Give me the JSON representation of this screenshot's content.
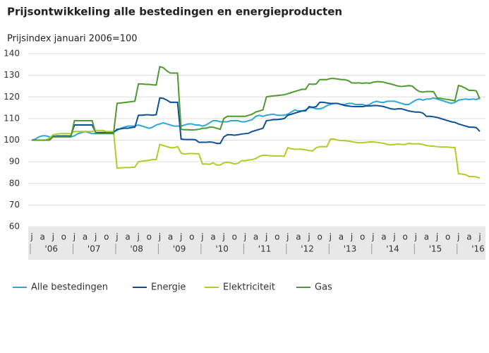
{
  "chart_data": {
    "type": "line",
    "title": "Prijsontwikkeling alle bestedingen en energieproducten",
    "subtitle": "Prijsindex januari 2006=100",
    "categories": [
      "j",
      null,
      null,
      "a",
      null,
      null,
      "j",
      null,
      null,
      "o",
      null,
      null,
      "j",
      null,
      null,
      "a",
      null,
      null,
      "j",
      null,
      null,
      "o",
      null,
      null,
      "j",
      null,
      null,
      "a",
      null,
      null,
      "j",
      null,
      null,
      "o",
      null,
      null,
      "j",
      null,
      null,
      "a",
      null,
      null,
      "j",
      null,
      null,
      "o",
      null,
      null,
      "j",
      null,
      null,
      "a",
      null,
      null,
      "j",
      null,
      null,
      "o",
      null,
      null,
      "j",
      null,
      null,
      "a",
      null,
      null,
      "j",
      null,
      null,
      "o",
      null,
      null,
      "j",
      null,
      null,
      "a",
      null,
      null,
      "j",
      null,
      null,
      "o",
      null,
      null,
      "j",
      null,
      null,
      "a",
      null,
      null,
      "j",
      null,
      null,
      "o",
      null,
      null,
      "j",
      null,
      null,
      "a",
      null,
      null,
      "j",
      null,
      null,
      "o",
      null,
      null,
      "j",
      null,
      null,
      "a",
      null,
      null,
      "j",
      null,
      null,
      "o",
      null,
      null,
      "j",
      null,
      null,
      "a",
      null,
      null,
      "j"
    ],
    "year_labels": [
      "'06",
      "'07",
      "'08",
      "'09",
      "'10",
      "'11",
      "'12",
      "'13",
      "'14",
      "'15",
      "'16"
    ],
    "ylim": [
      60,
      140
    ],
    "yticks": [
      60,
      70,
      80,
      90,
      100,
      110,
      120,
      130,
      140
    ],
    "grid": true,
    "series": [
      {
        "name": "Alle bestedingen",
        "color": "#2da7d6",
        "values": [
          100,
          100.5,
          101.5,
          102,
          102,
          101.5,
          101.5,
          102,
          102,
          102,
          102,
          101.5,
          102,
          103,
          103.5,
          104,
          103.5,
          103,
          103,
          103.5,
          103.5,
          103.5,
          103.5,
          104,
          104.5,
          105.5,
          106,
          106.5,
          106.5,
          106.5,
          107,
          106.5,
          106,
          105.5,
          106,
          107,
          107.5,
          108,
          107.5,
          107,
          106.5,
          106.5,
          106.5,
          107,
          107.5,
          107.5,
          107,
          107,
          106.5,
          107,
          108,
          109,
          109,
          108.5,
          108.5,
          108.5,
          109,
          109,
          109,
          108.5,
          108.5,
          109,
          109.5,
          111,
          111.5,
          111,
          111.5,
          111.8,
          112,
          111.5,
          111.5,
          111.5,
          112,
          113,
          114,
          113.5,
          113.5,
          114,
          115,
          115,
          114.5,
          114.5,
          115,
          116,
          116.5,
          117,
          117,
          116.5,
          116.5,
          117,
          117,
          116.5,
          116.5,
          116.5,
          116,
          116.5,
          117.5,
          118,
          117.5,
          117.5,
          118,
          118,
          118,
          117.5,
          117,
          116.5,
          116.5,
          117.5,
          118.5,
          119,
          118.5,
          119,
          119,
          119.5,
          119,
          118.5,
          118,
          117.5,
          117,
          117.5,
          118.5,
          118.8,
          119,
          118.8,
          119,
          118.8,
          119.5
        ]
      },
      {
        "name": "Energie",
        "color": "#0f4f96",
        "values": [
          100,
          100,
          100,
          100,
          100,
          100.5,
          101.8,
          101.8,
          101.8,
          101.8,
          101.8,
          102,
          107,
          107,
          107,
          107,
          107,
          107,
          103.5,
          103.5,
          103.5,
          103.5,
          103.5,
          103.5,
          105,
          105.2,
          105.5,
          105.5,
          105.8,
          106,
          111.5,
          111.5,
          111.7,
          111.7,
          111.5,
          111.8,
          119.5,
          119.3,
          118.5,
          117.5,
          117.5,
          117.5,
          100.5,
          100.3,
          100.3,
          100.3,
          100.2,
          99,
          99,
          99,
          99.2,
          99,
          98.5,
          98.5,
          101.5,
          102.5,
          102.5,
          102.3,
          102.5,
          102.8,
          103,
          103.2,
          104,
          104.5,
          105,
          105.5,
          109,
          109.2,
          109.5,
          109.5,
          109.7,
          110,
          111.5,
          112,
          112.5,
          113,
          113.5,
          113.5,
          115.5,
          115.2,
          115.5,
          117.5,
          117.5,
          117.2,
          117,
          117,
          117,
          116.5,
          116,
          115.8,
          115.6,
          115.5,
          115.5,
          115.5,
          115.8,
          115.8,
          116,
          116,
          115.8,
          115.5,
          115,
          114.5,
          114.3,
          114.5,
          114.5,
          114,
          113.5,
          113.2,
          113,
          113,
          112.5,
          111,
          111,
          110.8,
          110.5,
          110,
          109.5,
          109,
          108.5,
          108.2,
          107.5,
          107,
          106.5,
          106,
          106,
          105.8,
          104
        ]
      },
      {
        "name": "Elektriciteit",
        "color": "#b3cc24",
        "values": [
          100,
          100,
          100,
          100,
          100,
          101,
          102.5,
          102.8,
          103,
          103,
          103,
          103,
          104,
          104,
          104,
          104,
          104,
          104,
          104.5,
          104.5,
          104.5,
          104,
          104,
          104,
          87,
          87.2,
          87.3,
          87.3,
          87.4,
          87.5,
          90,
          90.3,
          90.5,
          90.7,
          91,
          91,
          98,
          97.5,
          97,
          96.5,
          96.5,
          97,
          94,
          93.5,
          93.8,
          93.8,
          93.7,
          93.7,
          89,
          89,
          88.8,
          89.5,
          88.5,
          88.5,
          89.5,
          89.8,
          89.5,
          89,
          89.3,
          90.5,
          90.5,
          90.8,
          91,
          91.5,
          92.5,
          93,
          93,
          92.8,
          92.7,
          92.7,
          92.7,
          92.5,
          96.5,
          96,
          95.8,
          95.8,
          95.8,
          95.5,
          95.2,
          95,
          96.5,
          97,
          97,
          97,
          100.5,
          100.5,
          100,
          99.8,
          99.8,
          99.5,
          99.3,
          99,
          98.8,
          98.8,
          99,
          99.2,
          99.2,
          99,
          98.8,
          98.5,
          98,
          97.8,
          98,
          98.2,
          98,
          98,
          98.5,
          98.3,
          98.3,
          98.3,
          98,
          97.5,
          97.3,
          97.2,
          97,
          96.8,
          96.8,
          96.8,
          96.6,
          96.6,
          84.5,
          84.3,
          84,
          83.2,
          83.2,
          83,
          82.5
        ]
      },
      {
        "name": "Gas",
        "color": "#4f9a2c",
        "values": [
          100,
          100,
          100,
          100,
          100,
          100,
          101.5,
          101.5,
          101.5,
          101.5,
          101.5,
          101.5,
          109,
          109,
          109,
          109,
          109,
          109,
          103,
          103,
          103,
          103,
          103,
          103,
          117,
          117.2,
          117.4,
          117.6,
          117.8,
          118,
          126,
          126,
          125.8,
          125.8,
          125.6,
          125.5,
          134,
          133.5,
          132,
          131,
          131,
          131,
          105,
          104.8,
          104.8,
          104.7,
          104.8,
          105,
          105.5,
          105.5,
          106,
          106,
          105.5,
          105,
          110,
          111,
          111,
          111,
          111,
          111,
          111,
          111.5,
          112,
          113,
          113.5,
          114,
          120,
          120.3,
          120.5,
          120.6,
          120.8,
          121,
          121.5,
          122,
          122.5,
          123,
          123.5,
          123.5,
          126,
          125.8,
          126,
          128,
          128,
          128,
          128.5,
          128.5,
          128.3,
          128,
          128,
          127.5,
          126.5,
          126.4,
          126.5,
          126.3,
          126.5,
          126.3,
          126.8,
          127,
          127,
          126.8,
          126.3,
          126,
          125.5,
          125,
          124.8,
          125,
          125.2,
          125,
          123.5,
          122.5,
          122.2,
          122.5,
          122.5,
          122.4,
          119.5,
          119.3,
          119,
          118.8,
          118.5,
          118.2,
          125.3,
          124.8,
          124,
          123,
          123,
          122.8,
          119
        ]
      }
    ]
  }
}
